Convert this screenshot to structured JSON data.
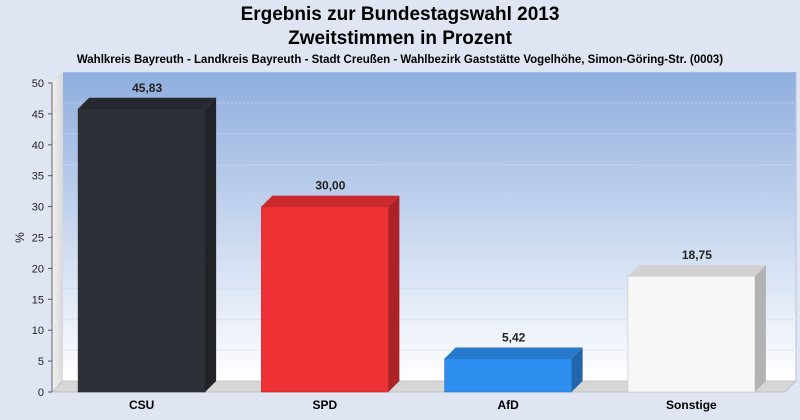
{
  "chart_data": {
    "type": "bar",
    "title": "Ergebnis zur Bundestagswahl 2013",
    "subtitle": "Zweitstimmen in Prozent",
    "caption": "Wahlkreis Bayreuth - Landkreis Bayreuth - Stadt Creußen - Wahlbezirk Gaststätte Vogelhöhe, Simon-Göring-Str. (0003)",
    "ylabel": "%",
    "xlabel": "",
    "ylim": [
      0,
      50
    ],
    "yticks": [
      0,
      5,
      10,
      15,
      20,
      25,
      30,
      35,
      40,
      45,
      50
    ],
    "categories": [
      "CSU",
      "SPD",
      "AfD",
      "Sonstige"
    ],
    "values": [
      45.83,
      30.0,
      5.42,
      18.75
    ],
    "value_labels": [
      "45,83",
      "30,00",
      "5,42",
      "18,75"
    ],
    "colors": [
      "#2e3038",
      "#ee3135",
      "#2e8ef0",
      "#f7f7f7"
    ],
    "grid": true,
    "legend": "none"
  }
}
